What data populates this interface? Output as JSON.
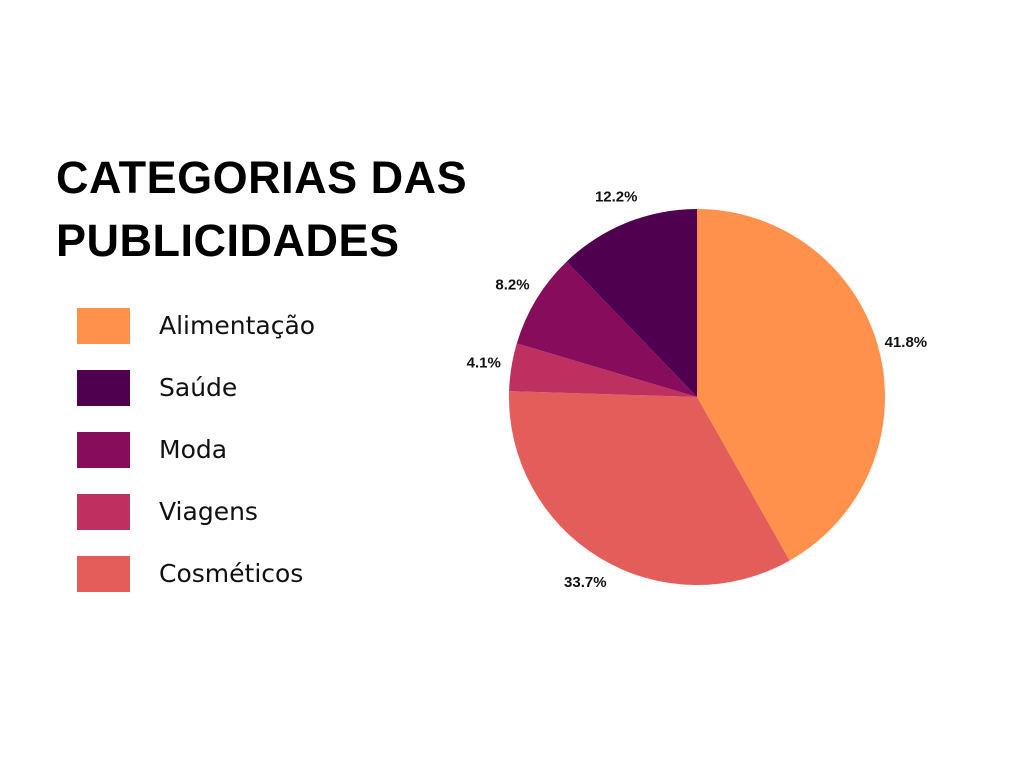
{
  "chart_data": {
    "type": "pie",
    "title_lines": [
      "CATEGORIAS DAS",
      "PUBLICIDADES"
    ],
    "legend_placement": "left",
    "start": "top",
    "direction": "clockwise",
    "slices": [
      {
        "name": "Alimentação",
        "value": 41.8,
        "label": "41.8%",
        "color": "#FF914D"
      },
      {
        "name": "Cosméticos",
        "value": 33.7,
        "label": "33.7%",
        "color": "#E35D5A"
      },
      {
        "name": "Viagens",
        "value": 4.1,
        "label": "4.1%",
        "color": "#BD3060"
      },
      {
        "name": "Moda",
        "value": 8.2,
        "label": "8.2%",
        "color": "#870C5B"
      },
      {
        "name": "Saúde",
        "value": 12.2,
        "label": "12.2%",
        "color": "#4F004F"
      }
    ],
    "legend": [
      {
        "name": "Alimentação",
        "color": "#FF914D"
      },
      {
        "name": "Saúde",
        "color": "#4F004F"
      },
      {
        "name": "Moda",
        "color": "#870C5B"
      },
      {
        "name": "Viagens",
        "color": "#BD3060"
      },
      {
        "name": "Cosméticos",
        "color": "#E35D5A"
      }
    ]
  }
}
